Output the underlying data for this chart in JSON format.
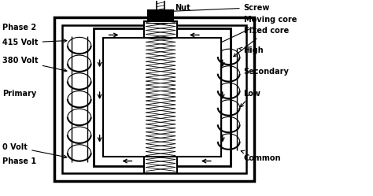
{
  "figsize": [
    4.74,
    2.49
  ],
  "dpi": 100,
  "labels": {
    "screw": "Screw",
    "nut": "Nut",
    "moving_core": "Moving core",
    "fixed_core": "Fixed core",
    "phase2": "Phase 2",
    "volt415": "415 Volt",
    "volt380": "380 Volt",
    "primary": "Primary",
    "volt0": "0 Volt",
    "phase1": "Phase 1",
    "high": "High",
    "secondary": "Secondary",
    "low": "Low",
    "common": "Common"
  }
}
